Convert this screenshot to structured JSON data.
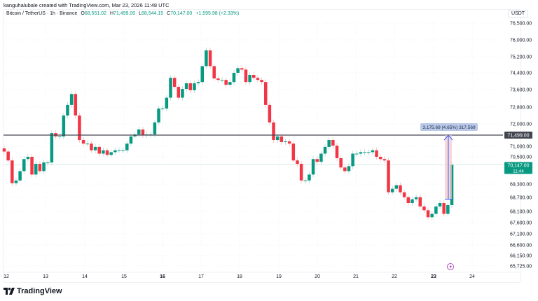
{
  "header": {
    "credit": "kanguhalubale created with TradingView.com, Mar 23, 2026 11:48 UTC",
    "symbol": "Bitcoin / TetherUS · 1h · Binance",
    "open_label": "O",
    "open": "68,551.02",
    "high_label": "H",
    "high": "71,499.00",
    "low_label": "L",
    "low": "68,544.15",
    "close_label": "C",
    "close": "70,147.00",
    "change": "+1,595.98 (+2.33%)"
  },
  "price_axis": {
    "unit": "USDT",
    "ticks": [
      "76,500.00",
      "76,000.00",
      "75,200.00",
      "74,400.00",
      "73,600.00",
      "72,800.00",
      "72,000.00",
      "71,000.00",
      "70,500.00",
      "69,300.00",
      "68,700.00",
      "68,100.00",
      "67,600.00",
      "67,100.00",
      "66,600.00",
      "66,150.00",
      "65,725.00"
    ],
    "horizontal_line_label": "71,499.00",
    "last_price_label": "70,147.00",
    "countdown": "11:44"
  },
  "time_axis": {
    "ticks": [
      "12",
      "13",
      "14",
      "15",
      "16",
      "17",
      "18",
      "19",
      "20",
      "21",
      "22",
      "23",
      "24"
    ],
    "bold": [
      "16",
      "23"
    ]
  },
  "measure": {
    "label": "3,175.69 (4.65%) 317,569"
  },
  "brand": {
    "name": "TradingView"
  },
  "colors": {
    "up": "#089981",
    "down": "#f23645",
    "hline": "#434651",
    "measure": "#2962ff",
    "measure_fill": "#f7c5c9"
  },
  "icons": {
    "event": "lightning-icon",
    "logo": "tradingview-logo"
  },
  "chart_data": {
    "type": "candlestick",
    "symbol": "BTC/USDT",
    "interval": "1h",
    "x_range": [
      "12",
      "24"
    ],
    "y_range": [
      65725,
      76500
    ],
    "horizontal_line": 71499,
    "last_close": 70147,
    "closes": [
      70750,
      70340,
      69340,
      69460,
      69870,
      70400,
      70500,
      69720,
      70190,
      69870,
      70250,
      70250,
      71590,
      71440,
      71440,
      72400,
      72900,
      73400,
      72400,
      71280,
      71120,
      71120,
      70810,
      70970,
      70650,
      70810,
      70590,
      70720,
      70810,
      70810,
      70810,
      71120,
      71440,
      71530,
      71750,
      71500,
      71530,
      71530,
      72070,
      72730,
      72730,
      73230,
      74160,
      73730,
      73230,
      73630,
      73900,
      73570,
      73900,
      73960,
      74730,
      75500,
      74730,
      74130,
      74060,
      74060,
      73830,
      73960,
      74400,
      74630,
      74560,
      73960,
      74300,
      74160,
      74060,
      73960,
      72900,
      72070,
      71280,
      71440,
      71190,
      71220,
      71120,
      70340,
      70190,
      69460,
      69460,
      69720,
      70400,
      70280,
      70650,
      70970,
      71280,
      71030,
      70440,
      70030,
      69870,
      70090,
      70650,
      70650,
      70720,
      70720,
      70720,
      70810,
      70500,
      70400,
      70340,
      68930,
      69090,
      69250,
      68930,
      68710,
      68460,
      68620,
      68710,
      68310,
      68150,
      67840,
      67990,
      68310,
      68460,
      67990,
      68370,
      70147
    ]
  }
}
